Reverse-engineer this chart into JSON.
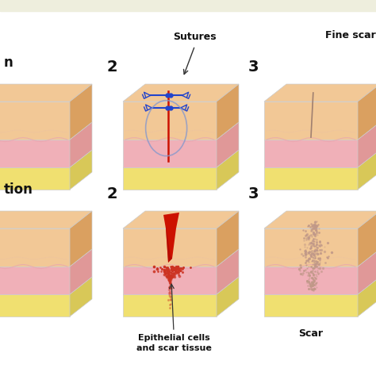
{
  "bg_color": "#ffffff",
  "header_color": "#eeeedd",
  "skin_top_color": "#f2c896",
  "skin_top_darker": "#e8b878",
  "skin_mid_color": "#f0b0b8",
  "skin_mid_side": "#e09898",
  "skin_bot_color": "#f0e070",
  "skin_bot_side": "#d8c858",
  "skin_top_side": "#daa060",
  "wound_red": "#cc1100",
  "wound_dark_red": "#aa0800",
  "suture_blue": "#2244cc",
  "scar_line_color": "#b08878",
  "scar_dot_color": "#c09888",
  "dot_red": "#cc3322",
  "label_color": "#111111",
  "arrow_color": "#333333",
  "ellipse_color": "#8899cc",
  "sutures_label": "Sutures",
  "epi_label": "Epithelial cells\nand scar tissue",
  "fine_scar_label": "Fine scar",
  "scar_label": "Scar",
  "num2_label": "2",
  "num3_label": "3",
  "primary_label": "n",
  "secondary_label": "tion"
}
